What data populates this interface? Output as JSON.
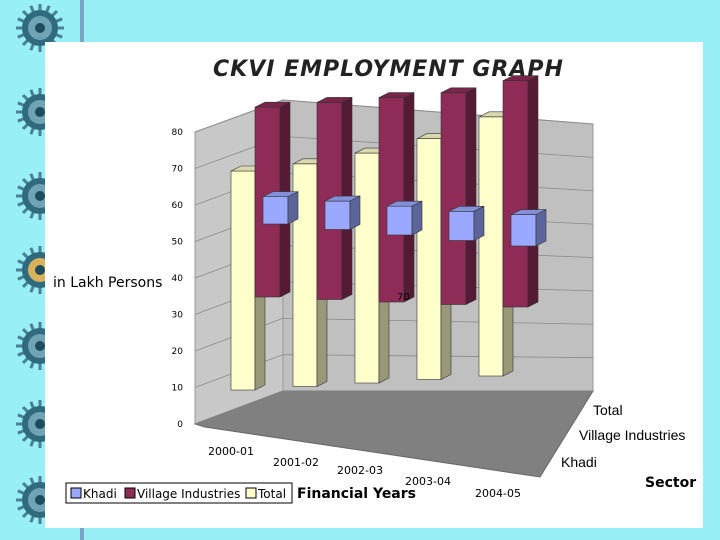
{
  "slide": {
    "background": "#98f0f6"
  },
  "chart_data": {
    "type": "bar",
    "subtype": "3d-column",
    "title": "CKVI EMPLOYMENT GRAPH",
    "ylabel": "in Lakh Persons",
    "xlabel": "Financial Years",
    "depth_label": "Sector",
    "categories": [
      "2000-01",
      "2001-02",
      "2002-03",
      "2003-04",
      "2004-05"
    ],
    "yticks": [
      0,
      10,
      20,
      30,
      40,
      50,
      60,
      70,
      80
    ],
    "ylim": [
      0,
      80
    ],
    "series": [
      {
        "name": "Khadi",
        "values": [
          7.5,
          7.8,
          7.9,
          8.0,
          8.6
        ],
        "color": "#9aa8ff"
      },
      {
        "name": "Village Industries",
        "values": [
          52,
          54,
          56,
          58,
          62
        ],
        "color": "#8e2b57"
      },
      {
        "name": "Total",
        "values": [
          60,
          61,
          63,
          66,
          71
        ],
        "color": "#ffffcc"
      }
    ],
    "annotation": "70",
    "grid": true,
    "legend_position": "bottom-left"
  }
}
